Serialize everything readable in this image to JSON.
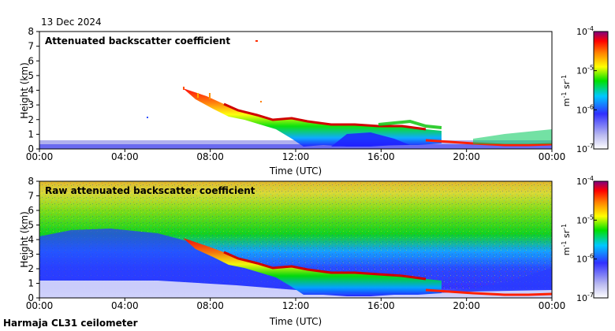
{
  "date_label": "13 Dec 2024",
  "instrument_label": "Harmaja CL31 ceilometer",
  "colorbar": {
    "unit_label": [
      "m",
      "-1",
      " sr",
      "-1"
    ],
    "ticks": [
      {
        "base": "10",
        "exp": "-7",
        "value": 1e-07
      },
      {
        "base": "10",
        "exp": "-6",
        "value": 1e-06
      },
      {
        "base": "10",
        "exp": "-5",
        "value": 1e-05
      },
      {
        "base": "10",
        "exp": "-4",
        "value": 0.0001
      }
    ],
    "scale": "log",
    "range": [
      1e-07,
      0.0001
    ],
    "colors": [
      "#ffffff",
      "#b8b8f0",
      "#3030ff",
      "#00c8ff",
      "#00e000",
      "#ffff00",
      "#ff8000",
      "#ff0000",
      "#800080"
    ]
  },
  "chart_data": [
    {
      "type": "heatmap",
      "title": "Attenuated backscatter coefficient",
      "xlabel": "Time (UTC)",
      "ylabel": "Height (km)",
      "xticks": [
        "00:00",
        "04:00",
        "08:00",
        "12:00",
        "16:00",
        "20:00",
        "00:00"
      ],
      "xlim_hours": [
        0,
        24
      ],
      "yticks": [
        "0",
        "1",
        "2",
        "3",
        "4",
        "5",
        "6",
        "7",
        "8"
      ],
      "ylim": [
        0,
        8
      ],
      "z_scale": "log",
      "z_range": [
        1e-07,
        0.0001
      ],
      "features": {
        "cloud_layer_base_km": [
          {
            "t": 6.8,
            "h": 3.6
          },
          {
            "t": 7.5,
            "h": 3.4
          },
          {
            "t": 8.2,
            "h": 3.0
          },
          {
            "t": 9.0,
            "h": 2.5
          },
          {
            "t": 10.0,
            "h": 2.2
          },
          {
            "t": 11.0,
            "h": 1.9
          },
          {
            "t": 12.0,
            "h": 1.8
          },
          {
            "t": 13.0,
            "h": 1.6
          },
          {
            "t": 14.0,
            "h": 1.5
          },
          {
            "t": 15.0,
            "h": 1.5
          },
          {
            "t": 16.0,
            "h": 1.4
          },
          {
            "t": 17.0,
            "h": 1.4
          },
          {
            "t": 18.0,
            "h": 1.3
          }
        ],
        "low_layer_km": [
          {
            "t": 18.5,
            "h": 0.5
          },
          {
            "t": 20.0,
            "h": 0.4
          },
          {
            "t": 22.0,
            "h": 0.35
          },
          {
            "t": 24.0,
            "h": 0.3
          }
        ]
      }
    },
    {
      "type": "heatmap",
      "title": "Raw attenuated backscatter coefficient",
      "xlabel": "Time (UTC)",
      "ylabel": "Height (km)",
      "xticks": [
        "00:00",
        "04:00",
        "08:00",
        "12:00",
        "16:00",
        "20:00",
        "00:00"
      ],
      "xlim_hours": [
        0,
        24
      ],
      "yticks": [
        "0",
        "1",
        "2",
        "3",
        "4",
        "5",
        "6",
        "7",
        "8"
      ],
      "ylim": [
        0,
        8
      ],
      "z_scale": "log",
      "z_range": [
        1e-07,
        0.0001
      ]
    }
  ]
}
